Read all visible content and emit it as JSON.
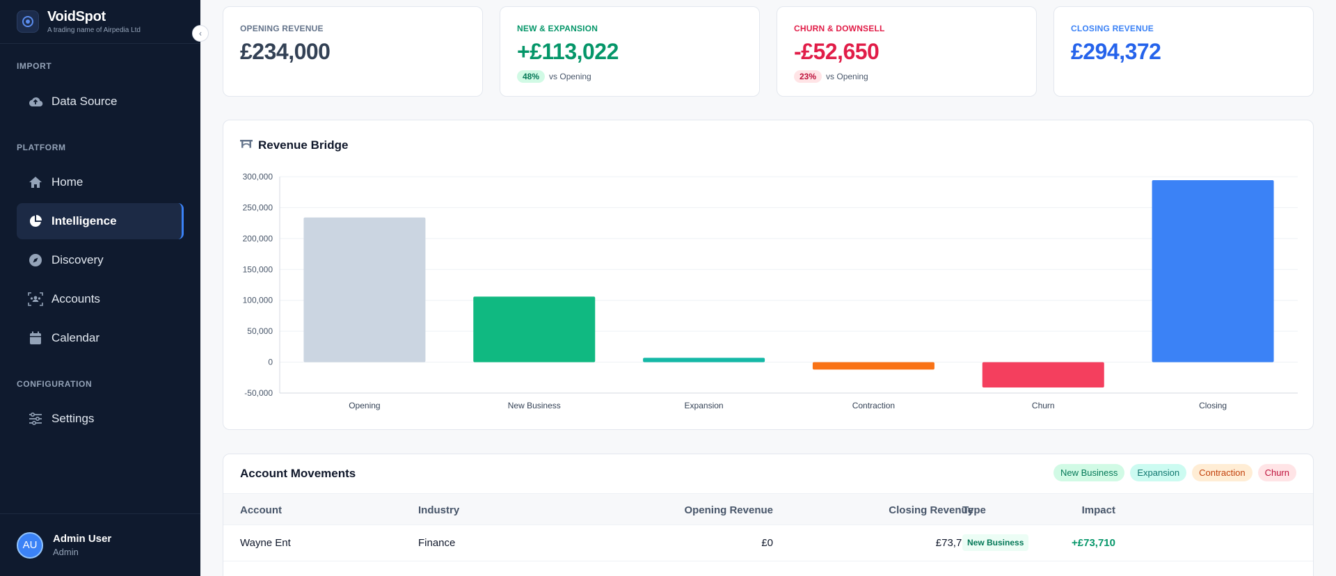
{
  "brand": {
    "name": "VoidSpot",
    "subtitle": "A trading name of Airpedia Ltd"
  },
  "sidebar": {
    "sections": [
      {
        "label": "IMPORT"
      },
      {
        "label": "PLATFORM"
      },
      {
        "label": "CONFIGURATION"
      }
    ],
    "items": [
      {
        "label": "Data Source",
        "icon": "cloud-upload-icon",
        "active": false
      },
      {
        "label": "Home",
        "icon": "home-icon",
        "active": false
      },
      {
        "label": "Intelligence",
        "icon": "pie-chart-icon",
        "active": true
      },
      {
        "label": "Discovery",
        "icon": "compass-icon",
        "active": false
      },
      {
        "label": "Accounts",
        "icon": "accounts-scan-icon",
        "active": false
      },
      {
        "label": "Calendar",
        "icon": "calendar-icon",
        "active": false
      },
      {
        "label": "Settings",
        "icon": "sliders-icon",
        "active": false
      }
    ],
    "user": {
      "initials": "AU",
      "name": "Admin User",
      "role": "Admin"
    }
  },
  "kpis": [
    {
      "label": "OPENING REVENUE",
      "value": "£234,000",
      "color": "#334155",
      "label_color": "#64748b"
    },
    {
      "label": "NEW & EXPANSION",
      "value": "+£113,022",
      "color": "#059669",
      "label_color": "#059669",
      "pct": "48%",
      "pct_text": "vs Opening"
    },
    {
      "label": "CHURN & DOWNSELL",
      "value": "-£52,650",
      "color": "#e11d48",
      "label_color": "#e11d48",
      "pct": "23%",
      "pct_text": "vs Opening"
    },
    {
      "label": "CLOSING REVENUE",
      "value": "£294,372",
      "color": "#2563eb",
      "label_color": "#3b82f6"
    }
  ],
  "chart_card": {
    "title": "Revenue Bridge",
    "icon": "bridge-icon"
  },
  "chart_data": {
    "type": "bar",
    "subtype": "waterfall",
    "title": "Revenue Bridge",
    "categories": [
      "Opening",
      "New Business",
      "Expansion",
      "Contraction",
      "Churn",
      "Closing"
    ],
    "values": [
      234000,
      106000,
      7000,
      -12000,
      -41000,
      294372
    ],
    "colors": [
      "#cbd5e1",
      "#10b981",
      "#14b8a6",
      "#f97316",
      "#f43f5e",
      "#3b82f6"
    ],
    "ylim": [
      -50000,
      300000
    ],
    "yticks": [
      300000,
      250000,
      200000,
      150000,
      100000,
      50000,
      0,
      -50000
    ],
    "ytick_labels": [
      "300,000",
      "250,000",
      "200,000",
      "150,000",
      "100,000",
      "50,000",
      "0",
      "-50,000"
    ],
    "grid": true
  },
  "movements": {
    "title": "Account Movements",
    "legend": [
      {
        "label": "New Business",
        "bg": "#d1fae5",
        "fg": "#047857"
      },
      {
        "label": "Expansion",
        "bg": "#ccfbf1",
        "fg": "#0f766e"
      },
      {
        "label": "Contraction",
        "bg": "#ffedd5",
        "fg": "#c2410c"
      },
      {
        "label": "Churn",
        "bg": "#ffe4e6",
        "fg": "#be123c"
      }
    ],
    "columns": [
      "Account",
      "Industry",
      "Opening Revenue",
      "Closing Revenue",
      "Impact",
      "Type"
    ],
    "rows": [
      {
        "account": "Wayne Ent",
        "industry": "Finance",
        "opening": "£0",
        "closing": "£73,710",
        "impact": "+£73,710",
        "type": "New Business"
      }
    ]
  }
}
